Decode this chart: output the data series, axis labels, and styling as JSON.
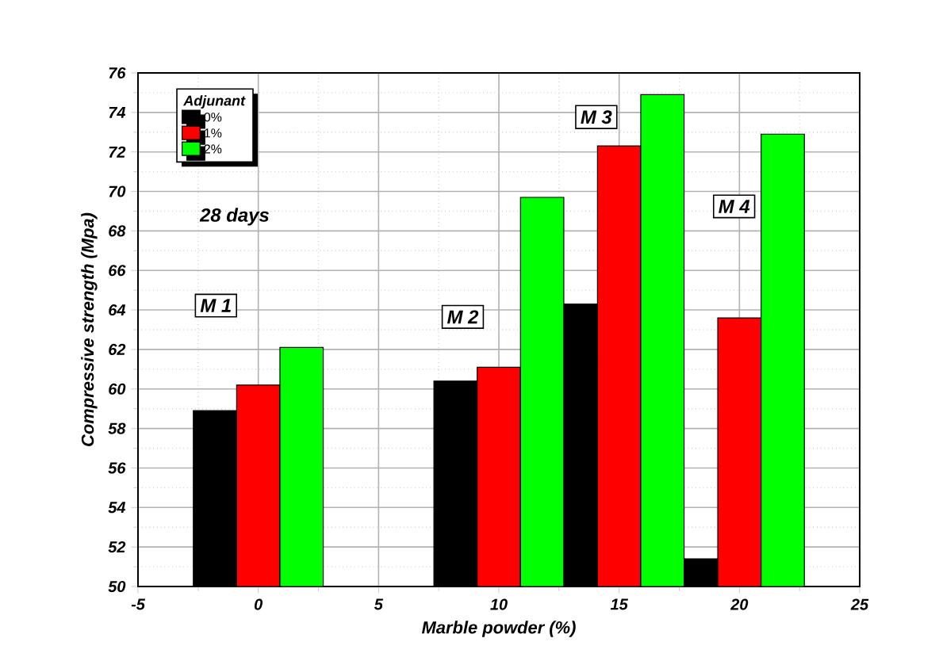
{
  "chart_data": {
    "type": "bar",
    "xlabel": "Marble powder (%)",
    "ylabel": "Compressive strength (Mpa)",
    "legend_title": "Adjunant",
    "x": [
      0,
      10,
      15,
      20
    ],
    "series": [
      {
        "name": "0%",
        "color": "#000000",
        "values": [
          58.9,
          60.4,
          64.3,
          51.4
        ]
      },
      {
        "name": "1%",
        "color": "#ff0000",
        "values": [
          60.2,
          61.1,
          72.3,
          63.6
        ]
      },
      {
        "name": "2%",
        "color": "#00ff00",
        "values": [
          62.1,
          69.7,
          74.9,
          72.9
        ]
      }
    ],
    "xlim": [
      -5,
      25
    ],
    "xticks": [
      -5,
      0,
      5,
      10,
      15,
      20,
      25
    ],
    "ylim": [
      50,
      76
    ],
    "yticks": [
      50,
      52,
      54,
      56,
      58,
      60,
      62,
      64,
      66,
      68,
      70,
      72,
      74,
      76
    ],
    "grid": true,
    "legend": "top left",
    "annotations": [
      "28 days",
      "M 1",
      "M 2",
      "M 3",
      "M 4"
    ]
  }
}
